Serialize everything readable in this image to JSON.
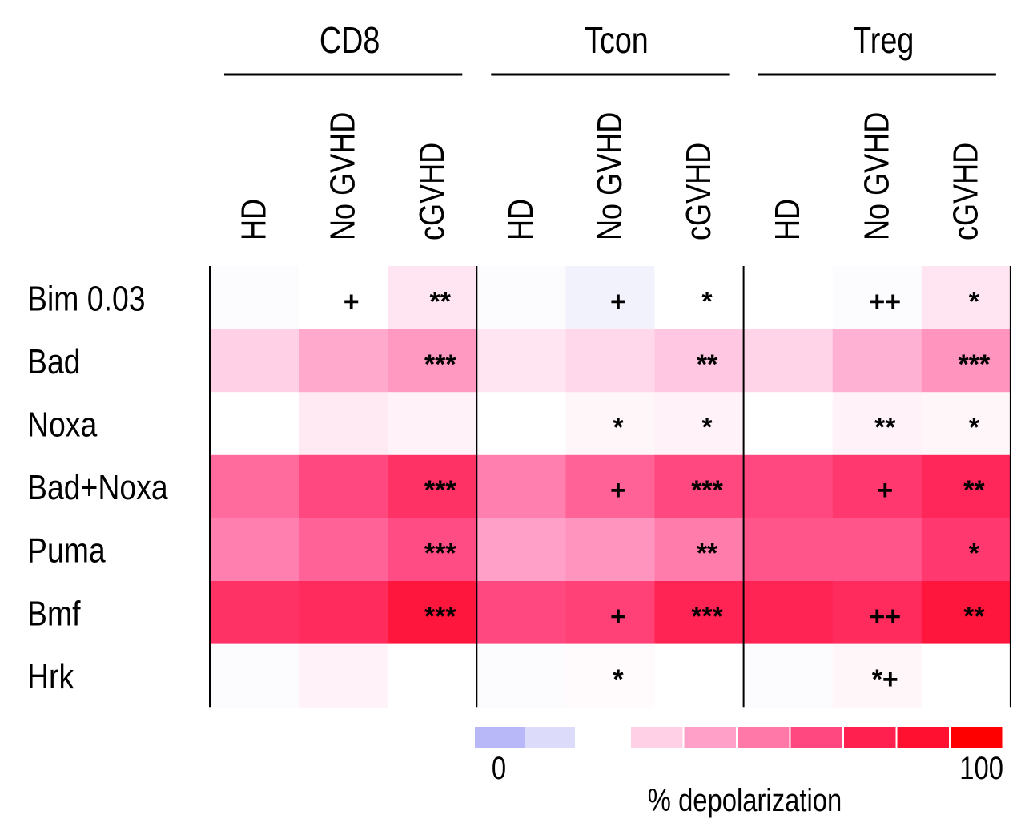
{
  "chart_data": {
    "type": "heatmap",
    "groups": [
      "CD8",
      "Tcon",
      "Treg"
    ],
    "columns": [
      "HD",
      "No GVHD",
      "cGVHD",
      "HD",
      "No GVHD",
      "cGVHD",
      "HD",
      "No GVHD",
      "cGVHD"
    ],
    "rows": [
      "Bim 0.03",
      "Bad",
      "Noxa",
      "Bad+Noxa",
      "Puma",
      "Bmf",
      "Hrk"
    ],
    "values": [
      [
        21,
        22,
        28,
        21,
        18,
        22,
        22,
        21,
        28
      ],
      [
        33,
        42,
        46,
        28,
        31,
        35,
        32,
        40,
        47
      ],
      [
        22,
        27,
        25,
        22,
        24,
        25,
        22,
        25,
        24
      ],
      [
        58,
        66,
        72,
        53,
        60,
        66,
        66,
        70,
        75
      ],
      [
        53,
        60,
        65,
        44,
        47,
        54,
        63,
        63,
        70
      ],
      [
        72,
        74,
        84,
        66,
        68,
        76,
        76,
        74,
        84
      ],
      [
        21,
        25,
        22,
        21,
        23,
        22,
        21,
        24,
        22
      ]
    ],
    "annotations": [
      [
        "",
        "+",
        "**",
        "",
        "+",
        "*",
        "",
        "++",
        "*"
      ],
      [
        "",
        "",
        "***",
        "",
        "",
        "**",
        "",
        "",
        "***"
      ],
      [
        "",
        "",
        "",
        "",
        "*",
        "*",
        "",
        "**",
        "*"
      ],
      [
        "",
        "",
        "***",
        "",
        "+",
        "***",
        "",
        "+",
        "**"
      ],
      [
        "",
        "",
        "***",
        "",
        "",
        "**",
        "",
        "",
        "*"
      ],
      [
        "",
        "",
        "***",
        "",
        "+",
        "***",
        "",
        "++",
        "**"
      ],
      [
        "",
        "",
        "",
        "",
        "*",
        "",
        "",
        "*+",
        ""
      ]
    ],
    "colorbar": {
      "label": "% depolarization",
      "min_label": "0",
      "max_label": "100",
      "range": [
        0,
        100
      ],
      "colors": [
        "#b8b8f8",
        "#dcdcfa",
        "#ffd0e6",
        "#ffa0c8",
        "#ff78a8",
        "#ff4880",
        "#ff2050",
        "#ff1030",
        "#ff0000"
      ]
    }
  }
}
